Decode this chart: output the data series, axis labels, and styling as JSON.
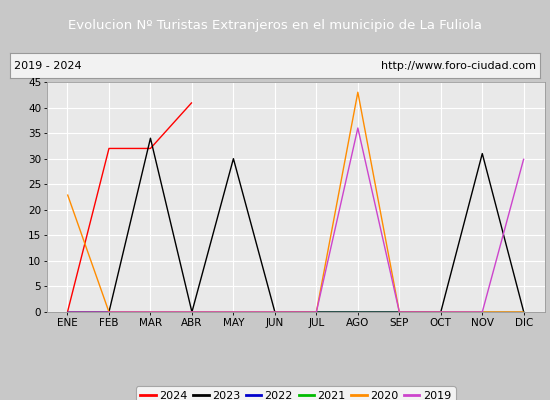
{
  "title": "Evolucion Nº Turistas Extranjeros en el municipio de La Fuliola",
  "subtitle_left": "2019 - 2024",
  "subtitle_right": "http://www.foro-ciudad.com",
  "months": [
    "ENE",
    "FEB",
    "MAR",
    "ABR",
    "MAY",
    "JUN",
    "JUL",
    "AGO",
    "SEP",
    "OCT",
    "NOV",
    "DIC"
  ],
  "ylim": [
    0,
    45
  ],
  "yticks": [
    0,
    5,
    10,
    15,
    20,
    25,
    30,
    35,
    40,
    45
  ],
  "series": {
    "2024": {
      "color": "#ff0000",
      "values": [
        0,
        32,
        32,
        41,
        null,
        null,
        null,
        null,
        null,
        null,
        null,
        null
      ]
    },
    "2023": {
      "color": "#000000",
      "values": [
        0,
        0,
        34,
        0,
        30,
        0,
        0,
        0,
        0,
        0,
        31,
        0
      ]
    },
    "2022": {
      "color": "#0000cc",
      "values": [
        0,
        0,
        0,
        0,
        0,
        0,
        0,
        0,
        0,
        0,
        0,
        0
      ]
    },
    "2021": {
      "color": "#00bb00",
      "values": [
        0,
        0,
        0,
        0,
        0,
        0,
        0,
        0,
        0,
        0,
        0,
        0
      ]
    },
    "2020": {
      "color": "#ff8c00",
      "values": [
        23,
        0,
        0,
        0,
        0,
        0,
        0,
        43,
        0,
        0,
        0,
        0
      ]
    },
    "2019": {
      "color": "#cc44cc",
      "values": [
        0,
        0,
        0,
        0,
        0,
        0,
        0,
        36,
        0,
        0,
        0,
        30
      ]
    }
  },
  "legend_order": [
    "2024",
    "2023",
    "2022",
    "2021",
    "2020",
    "2019"
  ],
  "title_bg": "#4472c4",
  "title_color": "#ffffff",
  "plot_bg": "#e9e9e9",
  "grid_color": "#ffffff",
  "outer_bg": "#c8c8c8",
  "subtitle_bg": "#f2f2f2",
  "border_color": "#999999"
}
